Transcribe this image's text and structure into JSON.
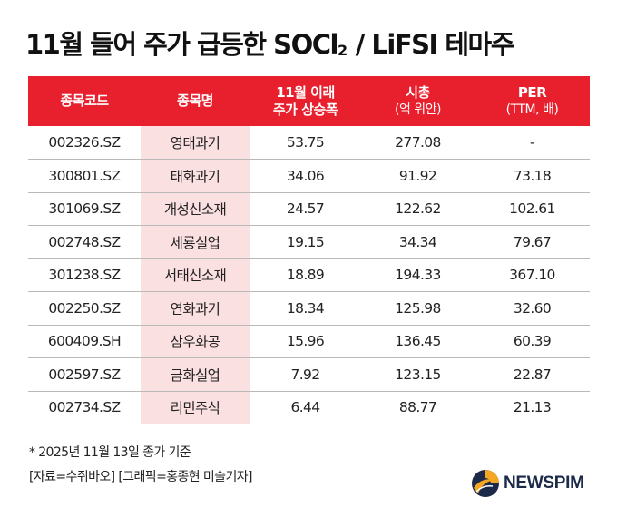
{
  "title": {
    "main": "11월 들어 주가 급등한 SOCl",
    "subscript": "2",
    "rest": " / LiFSI 테마주"
  },
  "table": {
    "headers": [
      {
        "line1": "종목코드",
        "line2": ""
      },
      {
        "line1": "종목명",
        "line2": ""
      },
      {
        "line1": "11월 이래",
        "line2": "주가 상승폭"
      },
      {
        "line1": "시총",
        "line2": "(억 위안)"
      },
      {
        "line1": "PER",
        "line2": "(TTM, 배)"
      }
    ],
    "rows": [
      {
        "code": "002326.SZ",
        "name": "영태과기",
        "rise": "53.75",
        "cap": "277.08",
        "per": "-"
      },
      {
        "code": "300801.SZ",
        "name": "태화과기",
        "rise": "34.06",
        "cap": "91.92",
        "per": "73.18"
      },
      {
        "code": "301069.SZ",
        "name": "개성신소재",
        "rise": "24.57",
        "cap": "122.62",
        "per": "102.61"
      },
      {
        "code": "002748.SZ",
        "name": "세룡실업",
        "rise": "19.15",
        "cap": "34.34",
        "per": "79.67"
      },
      {
        "code": "301238.SZ",
        "name": "서태신소재",
        "rise": "18.89",
        "cap": "194.33",
        "per": "367.10"
      },
      {
        "code": "002250.SZ",
        "name": "연화과기",
        "rise": "18.34",
        "cap": "125.98",
        "per": "32.60"
      },
      {
        "code": "600409.SH",
        "name": "삼우화공",
        "rise": "15.96",
        "cap": "136.45",
        "per": "60.39"
      },
      {
        "code": "002597.SZ",
        "name": "금화실업",
        "rise": "7.92",
        "cap": "123.15",
        "per": "22.87"
      },
      {
        "code": "002734.SZ",
        "name": "리민주식",
        "rise": "6.44",
        "cap": "88.77",
        "per": "21.13"
      }
    ]
  },
  "footer": {
    "note": "* 2025년 11월 13일 종가 기준",
    "credit": "[자료=수쥐바오] [그래픽=홍종현 미술기자]"
  },
  "logo": {
    "text": "NEWSPIM",
    "icon": "newspim-logo-icon",
    "colors": {
      "orange": "#f5a623",
      "navy": "#1c2a4a"
    }
  },
  "colors": {
    "header_red": "#e81f2d",
    "name_column_pink": "#fbe0e2"
  }
}
